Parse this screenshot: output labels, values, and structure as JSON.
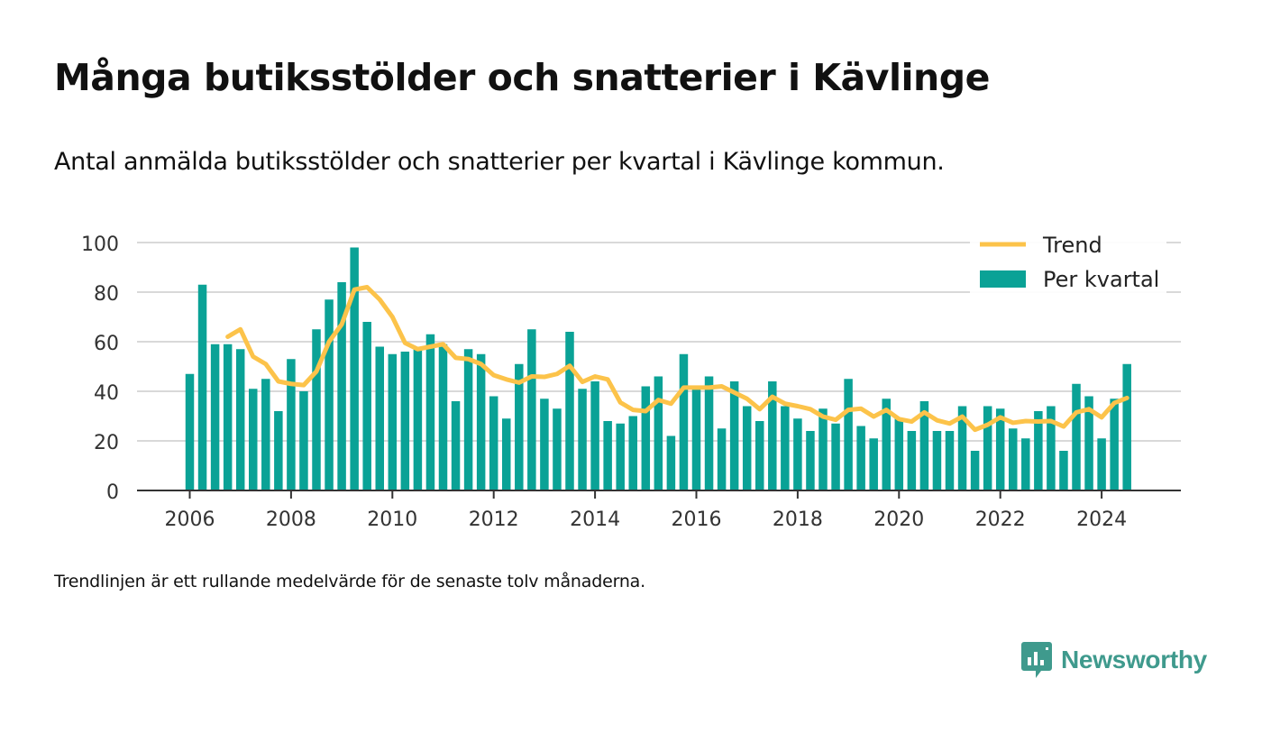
{
  "title": "Många butiksstölder och snatterier i Kävlinge",
  "subtitle": "Antal anmälda butiksstölder och snatterier per kvartal i Kävlinge kommun.",
  "note": "Trendlinjen är ett rullande medelvärde för de senaste tolv månaderna.",
  "logo": {
    "text": "Newsworthy",
    "icon": "newsworthy-logo-icon",
    "color": "#3f9a8d"
  },
  "chart_data": {
    "type": "bar",
    "title": "Många butiksstölder och snatterier i Kävlinge",
    "xlabel": "",
    "ylabel": "",
    "ylim": [
      0,
      100
    ],
    "yticks": [
      "0",
      "20",
      "40",
      "60",
      "80",
      "100"
    ],
    "xticks": [
      "2006",
      "2008",
      "2010",
      "2012",
      "2014",
      "2016",
      "2018",
      "2020",
      "2022",
      "2024"
    ],
    "grid": true,
    "legend": "top-right",
    "colors": {
      "bars": "#0aa296",
      "trend": "#fcc34a",
      "grid": "#d9d9d9",
      "axis": "#333333"
    },
    "categories": [
      "2006 Q1",
      "2006 Q2",
      "2006 Q3",
      "2006 Q4",
      "2007 Q1",
      "2007 Q2",
      "2007 Q3",
      "2007 Q4",
      "2008 Q1",
      "2008 Q2",
      "2008 Q3",
      "2008 Q4",
      "2009 Q1",
      "2009 Q2",
      "2009 Q3",
      "2009 Q4",
      "2010 Q1",
      "2010 Q2",
      "2010 Q3",
      "2010 Q4",
      "2011 Q1",
      "2011 Q2",
      "2011 Q3",
      "2011 Q4",
      "2012 Q1",
      "2012 Q2",
      "2012 Q3",
      "2012 Q4",
      "2013 Q1",
      "2013 Q2",
      "2013 Q3",
      "2013 Q4",
      "2014 Q1",
      "2014 Q2",
      "2014 Q3",
      "2014 Q4",
      "2015 Q1",
      "2015 Q2",
      "2015 Q3",
      "2015 Q4",
      "2016 Q1",
      "2016 Q2",
      "2016 Q3",
      "2016 Q4",
      "2017 Q1",
      "2017 Q2",
      "2017 Q3",
      "2017 Q4",
      "2018 Q1",
      "2018 Q2",
      "2018 Q3",
      "2018 Q4",
      "2019 Q1",
      "2019 Q2",
      "2019 Q3",
      "2019 Q4",
      "2020 Q1",
      "2020 Q2",
      "2020 Q3",
      "2020 Q4",
      "2021 Q1",
      "2021 Q2",
      "2021 Q3",
      "2021 Q4",
      "2022 Q1",
      "2022 Q2",
      "2022 Q3",
      "2022 Q4",
      "2023 Q1",
      "2023 Q2",
      "2023 Q3",
      "2023 Q4",
      "2024 Q1",
      "2024 Q2",
      "2024 Q3"
    ],
    "series": [
      {
        "name": "Per kvartal",
        "type": "bar",
        "values": [
          47,
          83,
          59,
          59,
          57,
          41,
          45,
          32,
          53,
          40,
          65,
          77,
          84,
          98,
          68,
          58,
          55,
          56,
          57,
          63,
          59,
          36,
          57,
          55,
          38,
          29,
          51,
          65,
          37,
          33,
          64,
          41,
          44,
          28,
          27,
          30,
          42,
          46,
          22,
          55,
          41,
          46,
          25,
          44,
          34,
          28,
          44,
          34,
          29,
          24,
          33,
          27,
          45,
          26,
          21,
          37,
          29,
          24,
          36,
          24,
          24,
          34,
          16,
          34,
          33,
          25,
          21,
          32,
          34,
          16,
          43,
          38,
          21,
          37,
          51
        ]
      },
      {
        "name": "Trend",
        "type": "line",
        "values": [
          null,
          null,
          null,
          62,
          65,
          54,
          51,
          44,
          43,
          42.5,
          48,
          60,
          67,
          81,
          82,
          77,
          70,
          59.5,
          57,
          58,
          59,
          53.5,
          53,
          51,
          46.5,
          44.8,
          43.5,
          46,
          45.8,
          47,
          50.3,
          43.8,
          46,
          44.8,
          35.5,
          32.5,
          32,
          36.5,
          35,
          41.5,
          41.5,
          41.5,
          42,
          39.5,
          37,
          32.8,
          37.8,
          35,
          34,
          32.8,
          29.8,
          28.5,
          32.5,
          33,
          29.8,
          32.5,
          28.8,
          27.8,
          31.5,
          28.3,
          27,
          29.8,
          24.5,
          26.5,
          29.5,
          27.3,
          28,
          27.8,
          28,
          25.8,
          31.5,
          32.8,
          29.5,
          35.3,
          37.3
        ]
      }
    ]
  }
}
